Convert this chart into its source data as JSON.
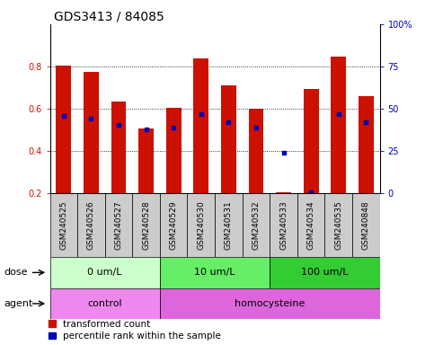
{
  "title": "GDS3413 / 84085",
  "samples": [
    "GSM240525",
    "GSM240526",
    "GSM240527",
    "GSM240528",
    "GSM240529",
    "GSM240530",
    "GSM240531",
    "GSM240532",
    "GSM240533",
    "GSM240534",
    "GSM240535",
    "GSM240848"
  ],
  "red_values": [
    0.805,
    0.775,
    0.635,
    0.505,
    0.605,
    0.84,
    0.71,
    0.6,
    0.205,
    0.695,
    0.845,
    0.66
  ],
  "blue_values": [
    0.565,
    0.555,
    0.525,
    0.5,
    0.51,
    0.575,
    0.535,
    0.51,
    0.39,
    0.205,
    0.575,
    0.535
  ],
  "ylim_left": [
    0.2,
    1.0
  ],
  "ylim_right": [
    0,
    100
  ],
  "yticks_left": [
    0.2,
    0.4,
    0.6,
    0.8
  ],
  "ytick_labels_left": [
    "0.2",
    "0.4",
    "0.6",
    "0.8"
  ],
  "yticks_right": [
    0,
    25,
    50,
    75,
    100
  ],
  "ytick_labels_right": [
    "0",
    "25",
    "50",
    "75",
    "100%"
  ],
  "red_color": "#CC1100",
  "blue_color": "#0000BB",
  "bar_bottom": 0.2,
  "bar_width": 0.55,
  "dose_groups": [
    {
      "label": "0 um/L",
      "start": 0,
      "end": 4,
      "color": "#CCFFCC"
    },
    {
      "label": "10 um/L",
      "start": 4,
      "end": 8,
      "color": "#66EE66"
    },
    {
      "label": "100 um/L",
      "start": 8,
      "end": 12,
      "color": "#33CC33"
    }
  ],
  "agent_groups": [
    {
      "label": "control",
      "start": 0,
      "end": 4,
      "color": "#EE88EE"
    },
    {
      "label": "homocysteine",
      "start": 4,
      "end": 12,
      "color": "#DD66DD"
    }
  ],
  "dose_label": "dose",
  "agent_label": "agent",
  "legend_red": "transformed count",
  "legend_blue": "percentile rank within the sample",
  "label_area_color": "#CCCCCC",
  "dotted_lines": [
    0.4,
    0.6,
    0.8
  ],
  "title_fontsize": 10,
  "tick_fontsize": 7,
  "label_fontsize": 8,
  "sample_fontsize": 6.5
}
